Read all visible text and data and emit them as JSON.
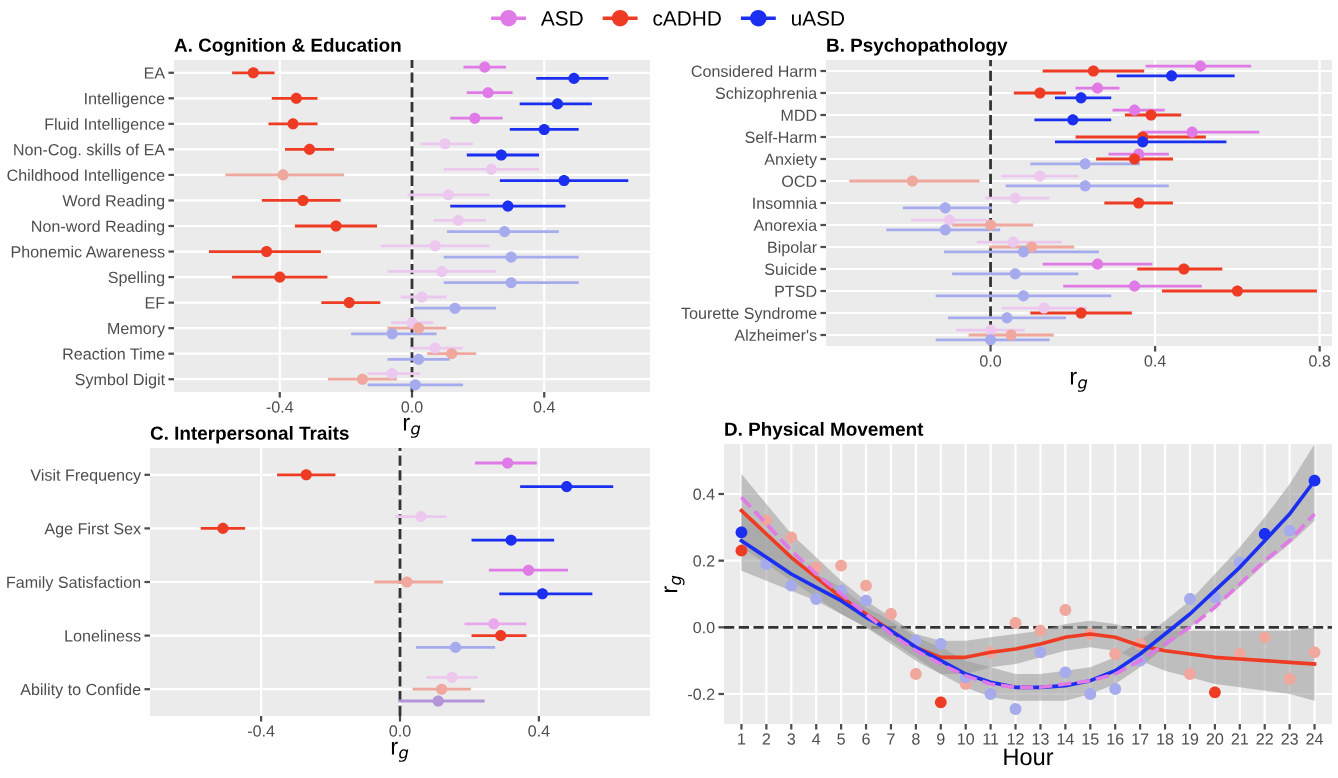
{
  "chart_data": [
    {
      "type": "scatter",
      "title": "A. Cognition & Education",
      "xlabel": "r$_{g}$",
      "orientation": "horizontal",
      "legend": "top",
      "grid": true,
      "categories": [
        "EA",
        "Intelligence",
        "Fluid Intelligence",
        "Non-Cog. skills of EA",
        "Childhood Intelligence",
        "Word Reading",
        "Non-word Reading",
        "Phonemic Awareness",
        "Spelling",
        "EF",
        "Memory",
        "Reaction Time",
        "Symbol Digit"
      ],
      "xlim": [
        -0.72,
        0.72
      ],
      "xticks": [
        {
          "value": -0.4,
          "label": "-0.4"
        },
        {
          "value": 0,
          "label": "0.0"
        },
        {
          "value": 0.4,
          "label": "0.4"
        }
      ],
      "ref_lines": [
        {
          "axis": "x",
          "value": 0,
          "line_style": "dashed",
          "color": "#333333"
        }
      ],
      "series": [
        {
          "name": "ASD",
          "color": "#df7ae6",
          "values": [
            0.22,
            0.23,
            0.19,
            0.1,
            0.24,
            0.11,
            0.14,
            0.07,
            0.09,
            0.03,
            0.0,
            0.07,
            -0.06
          ],
          "errors": [
            [
              0.16,
              0.28
            ],
            [
              0.17,
              0.3
            ],
            [
              0.12,
              0.27
            ],
            [
              0.03,
              0.18
            ],
            [
              0.1,
              0.38
            ],
            [
              -0.01,
              0.23
            ],
            [
              0.07,
              0.22
            ],
            [
              -0.09,
              0.23
            ],
            [
              -0.07,
              0.25
            ],
            [
              -0.03,
              0.1
            ],
            [
              -0.06,
              0.06
            ],
            [
              0.0,
              0.15
            ],
            [
              -0.13,
              0.02
            ]
          ],
          "colors": [
            "#df7ae6",
            "#df7ae6",
            "#df7ae6",
            "#ecc8ef",
            "#ecc8ef",
            "#ecc8ef",
            "#ecc8ef",
            "#ecc8ef",
            "#ecc8ef",
            "#ecc8ef",
            "#ecc8ef",
            "#ecc8ef",
            "#ecc8ef"
          ]
        },
        {
          "name": "cADHD",
          "color": "#ee3b24",
          "values": [
            -0.48,
            -0.35,
            -0.36,
            -0.31,
            -0.39,
            -0.33,
            -0.23,
            -0.44,
            -0.4,
            -0.19,
            0.02,
            0.12,
            -0.15
          ],
          "errors": [
            [
              -0.54,
              -0.42
            ],
            [
              -0.42,
              -0.29
            ],
            [
              -0.43,
              -0.29
            ],
            [
              -0.38,
              -0.24
            ],
            [
              -0.56,
              -0.21
            ],
            [
              -0.45,
              -0.22
            ],
            [
              -0.35,
              -0.11
            ],
            [
              -0.61,
              -0.28
            ],
            [
              -0.54,
              -0.26
            ],
            [
              -0.27,
              -0.1
            ],
            [
              -0.07,
              0.1
            ],
            [
              0.05,
              0.19
            ],
            [
              -0.25,
              -0.05
            ]
          ],
          "colors": [
            "#ee3b24",
            "#ee3b24",
            "#ee3b24",
            "#ee3b24",
            "#f0a79d",
            "#ee3b24",
            "#ee3b24",
            "#ee3b24",
            "#ee3b24",
            "#ee3b24",
            "#f0a79d",
            "#f0a79d",
            "#f0a79d"
          ]
        },
        {
          "name": "uASD",
          "color": "#1b2ff0",
          "values": [
            0.49,
            0.44,
            0.4,
            0.27,
            0.46,
            0.29,
            0.28,
            0.3,
            0.3,
            0.13,
            -0.06,
            0.02,
            0.01
          ],
          "errors": [
            [
              0.38,
              0.59
            ],
            [
              0.33,
              0.54
            ],
            [
              0.3,
              0.5
            ],
            [
              0.17,
              0.38
            ],
            [
              0.27,
              0.65
            ],
            [
              0.12,
              0.46
            ],
            [
              0.11,
              0.44
            ],
            [
              0.1,
              0.5
            ],
            [
              0.1,
              0.5
            ],
            [
              0.01,
              0.25
            ],
            [
              -0.18,
              0.07
            ],
            [
              -0.07,
              0.11
            ],
            [
              -0.13,
              0.15
            ]
          ],
          "colors": [
            "#1b2ff0",
            "#1b2ff0",
            "#1b2ff0",
            "#1b2ff0",
            "#1b2ff0",
            "#1b2ff0",
            "#a5abec",
            "#a5abec",
            "#a5abec",
            "#a5abec",
            "#a5abec",
            "#a5abec",
            "#a5abec"
          ]
        }
      ]
    },
    {
      "type": "scatter",
      "title": "B. Psychopathology",
      "xlabel": "r$_{g}$",
      "orientation": "horizontal",
      "grid": true,
      "categories": [
        "Considered Harm",
        "Schizophrenia",
        "MDD",
        "Self-Harm",
        "Anxiety",
        "OCD",
        "Insomnia",
        "Anorexia",
        "Bipolar",
        "Suicide",
        "PTSD",
        "Tourette Syndrome",
        "Alzheimer's"
      ],
      "xlim": [
        -0.4,
        0.83
      ],
      "xticks": [
        {
          "value": 0,
          "label": "0.0"
        },
        {
          "value": 0.4,
          "label": "0.4"
        },
        {
          "value": 0.8,
          "label": "0.8"
        }
      ],
      "ref_lines": [
        {
          "axis": "x",
          "value": 0,
          "line_style": "dashed",
          "color": "#333333"
        }
      ],
      "series": [
        {
          "color": "#df7ae6",
          "values": [
            0.51,
            0.26,
            0.35,
            0.49,
            0.36,
            0.12,
            0.06,
            -0.1,
            0.055,
            0.26,
            0.35,
            0.13,
            0.0
          ],
          "errors": [
            [
              0.38,
              0.63
            ],
            [
              0.21,
              0.31
            ],
            [
              0.3,
              0.42
            ],
            [
              0.37,
              0.65
            ],
            [
              0.29,
              0.43
            ],
            [
              0.03,
              0.21
            ],
            [
              -0.01,
              0.14
            ],
            [
              -0.19,
              -0.01
            ],
            [
              -0.03,
              0.17
            ],
            [
              0.13,
              0.39
            ],
            [
              0.18,
              0.51
            ],
            [
              0.03,
              0.23
            ],
            [
              -0.08,
              0.08
            ]
          ],
          "colors": [
            "#df7ae6",
            "#df7ae6",
            "#df7ae6",
            "#df7ae6",
            "#df7ae6",
            "#ecc8ef",
            "#ecc8ef",
            "#ecc8ef",
            "#ecc8ef",
            "#df7ae6",
            "#df7ae6",
            "#ecc8ef",
            "#ecc8ef"
          ]
        },
        {
          "color": "#ee3b24",
          "values": [
            0.25,
            0.12,
            0.39,
            0.37,
            0.35,
            -0.19,
            0.36,
            0.0,
            0.1,
            0.47,
            0.6,
            0.22,
            0.05
          ],
          "errors": [
            [
              0.13,
              0.37
            ],
            [
              0.06,
              0.18
            ],
            [
              0.33,
              0.46
            ],
            [
              0.21,
              0.52
            ],
            [
              0.26,
              0.44
            ],
            [
              -0.34,
              -0.03
            ],
            [
              0.28,
              0.44
            ],
            [
              -0.09,
              0.1
            ],
            [
              0.0,
              0.2
            ],
            [
              0.36,
              0.56
            ],
            [
              0.42,
              0.79
            ],
            [
              0.1,
              0.34
            ],
            [
              -0.05,
              0.15
            ]
          ],
          "colors": [
            "#ee3b24",
            "#ee3b24",
            "#ee3b24",
            "#ee3b24",
            "#ee3b24",
            "#f0a79d",
            "#ee3b24",
            "#f0a79d",
            "#f0a79d",
            "#ee3b24",
            "#ee3b24",
            "#ee3b24",
            "#f0a79d"
          ]
        },
        {
          "color": "#1b2ff0",
          "values": [
            0.44,
            0.22,
            0.2,
            0.37,
            0.23,
            0.23,
            -0.11,
            -0.11,
            0.08,
            0.06,
            0.08,
            0.04,
            0.0
          ],
          "errors": [
            [
              0.31,
              0.59
            ],
            [
              0.16,
              0.29
            ],
            [
              0.11,
              0.29
            ],
            [
              0.16,
              0.57
            ],
            [
              0.1,
              0.36
            ],
            [
              0.04,
              0.43
            ],
            [
              -0.21,
              0.0
            ],
            [
              -0.25,
              0.02
            ],
            [
              -0.11,
              0.26
            ],
            [
              -0.09,
              0.21
            ],
            [
              -0.13,
              0.29
            ],
            [
              -0.1,
              0.18
            ],
            [
              -0.13,
              0.14
            ]
          ],
          "colors": [
            "#1b2ff0",
            "#1b2ff0",
            "#1b2ff0",
            "#1b2ff0",
            "#a5abec",
            "#a5abec",
            "#a5abec",
            "#a5abec",
            "#a5abec",
            "#a5abec",
            "#a5abec",
            "#a5abec",
            "#a5abec"
          ]
        }
      ]
    },
    {
      "type": "scatter",
      "title": "C. Interpersonal Traits",
      "xlabel": "r$_{g}$",
      "orientation": "horizontal",
      "grid": true,
      "categories": [
        "Visit Frequency",
        "Age First Sex",
        "Family Satisfaction",
        "Loneliness",
        "Ability to Confide"
      ],
      "xlim": [
        -0.72,
        0.72
      ],
      "xticks": [
        {
          "value": -0.4,
          "label": "-0.4"
        },
        {
          "value": 0,
          "label": "0.0"
        },
        {
          "value": 0.4,
          "label": "0.4"
        }
      ],
      "ref_lines": [
        {
          "axis": "x",
          "value": 0,
          "line_style": "dashed",
          "color": "#333333"
        }
      ],
      "series": [
        {
          "color": "#df7ae6",
          "values": [
            0.31,
            0.06,
            0.37,
            0.27,
            0.15
          ],
          "errors": [
            [
              0.22,
              0.39
            ],
            [
              -0.01,
              0.13
            ],
            [
              0.26,
              0.48
            ],
            [
              0.19,
              0.36
            ],
            [
              0.08,
              0.22
            ]
          ],
          "colors": [
            "#df7ae6",
            "#ecc8ef",
            "#df7ae6",
            "#e9a8ee",
            "#ecc8ef"
          ]
        },
        {
          "color": "#ee3b24",
          "values": [
            -0.27,
            -0.51,
            0.02,
            0.29,
            0.12
          ],
          "errors": [
            [
              -0.35,
              -0.19
            ],
            [
              -0.57,
              -0.45
            ],
            [
              -0.07,
              0.12
            ],
            [
              0.21,
              0.36
            ],
            [
              0.04,
              0.2
            ]
          ],
          "colors": [
            "#ee3b24",
            "#ee3b24",
            "#f0a79d",
            "#ee3b24",
            "#f0a79d"
          ]
        },
        {
          "color": "#1b2ff0",
          "values": [
            0.48,
            0.32,
            0.41,
            0.16,
            0.11
          ],
          "errors": [
            [
              0.35,
              0.61
            ],
            [
              0.21,
              0.44
            ],
            [
              0.29,
              0.55
            ],
            [
              0.05,
              0.27
            ],
            [
              0.0,
              0.24
            ]
          ],
          "colors": [
            "#1b2ff0",
            "#1b2ff0",
            "#1b2ff0",
            "#a5abec",
            "#b394d6"
          ]
        }
      ]
    },
    {
      "type": "scatter",
      "title": "D. Physical Movement",
      "xlabel": "Hour",
      "ylabel": "r$_{g}$",
      "grid": true,
      "x": [
        1,
        2,
        3,
        4,
        5,
        6,
        7,
        8,
        9,
        10,
        11,
        12,
        13,
        14,
        15,
        16,
        17,
        18,
        19,
        20,
        21,
        22,
        23,
        24
      ],
      "xlim": [
        0.3,
        24.7
      ],
      "xticks": [
        1,
        2,
        3,
        4,
        5,
        6,
        7,
        8,
        9,
        10,
        11,
        12,
        13,
        14,
        15,
        16,
        17,
        18,
        19,
        20,
        21,
        22,
        23,
        24
      ],
      "ylim": [
        -0.29,
        0.55
      ],
      "yticks": [
        {
          "value": -0.2,
          "label": "-0.2"
        },
        {
          "value": 0,
          "label": "0.0"
        },
        {
          "value": 0.2,
          "label": "0.2"
        },
        {
          "value": 0.4,
          "label": "0.4"
        }
      ],
      "ref_lines": [
        {
          "axis": "y",
          "value": 0,
          "line_style": "dashed",
          "color": "#333333"
        }
      ],
      "series": [
        {
          "type": "line",
          "color": "#ee3b24",
          "line_style": "solid",
          "values": [
            0.35,
            0.28,
            0.21,
            0.15,
            0.09,
            0.04,
            -0.01,
            -0.06,
            -0.09,
            -0.09,
            -0.075,
            -0.065,
            -0.05,
            -0.03,
            -0.02,
            -0.03,
            -0.055,
            -0.07,
            -0.08,
            -0.09,
            -0.095,
            -0.1,
            -0.105,
            -0.11
          ],
          "lower": [
            0.24,
            0.19,
            0.14,
            0.09,
            0.04,
            0.0,
            -0.05,
            -0.1,
            -0.14,
            -0.14,
            -0.12,
            -0.11,
            -0.09,
            -0.07,
            -0.06,
            -0.07,
            -0.1,
            -0.13,
            -0.15,
            -0.17,
            -0.18,
            -0.19,
            -0.2,
            -0.22
          ],
          "upper": [
            0.46,
            0.37,
            0.28,
            0.21,
            0.14,
            0.08,
            0.03,
            -0.02,
            -0.04,
            -0.04,
            -0.03,
            -0.02,
            -0.01,
            0.01,
            0.02,
            0.01,
            -0.01,
            -0.01,
            -0.01,
            -0.01,
            -0.01,
            -0.01,
            -0.01,
            0.0
          ]
        },
        {
          "type": "line",
          "color": "#1b2ff0",
          "line_style": "solid",
          "values": [
            0.26,
            0.21,
            0.16,
            0.12,
            0.08,
            0.03,
            -0.01,
            -0.06,
            -0.1,
            -0.14,
            -0.165,
            -0.18,
            -0.18,
            -0.175,
            -0.16,
            -0.13,
            -0.08,
            -0.02,
            0.04,
            0.11,
            0.18,
            0.26,
            0.34,
            0.44
          ],
          "lower": [
            0.17,
            0.14,
            0.11,
            0.08,
            0.04,
            0.0,
            -0.04,
            -0.09,
            -0.14,
            -0.18,
            -0.21,
            -0.22,
            -0.22,
            -0.22,
            -0.2,
            -0.17,
            -0.12,
            -0.06,
            0.0,
            0.06,
            0.12,
            0.19,
            0.25,
            0.32
          ],
          "upper": [
            0.35,
            0.28,
            0.21,
            0.16,
            0.12,
            0.06,
            0.02,
            -0.03,
            -0.06,
            -0.1,
            -0.12,
            -0.14,
            -0.14,
            -0.13,
            -0.12,
            -0.09,
            -0.04,
            0.02,
            0.08,
            0.16,
            0.24,
            0.33,
            0.43,
            0.55
          ]
        },
        {
          "type": "line",
          "color": "#df7ae6",
          "line_style": "dashed",
          "values": [
            0.39,
            0.31,
            0.23,
            0.16,
            0.1,
            0.04,
            -0.02,
            -0.07,
            -0.11,
            -0.145,
            -0.17,
            -0.18,
            -0.18,
            -0.17,
            -0.16,
            -0.14,
            -0.1,
            -0.05,
            0.0,
            0.06,
            0.13,
            0.2,
            0.26,
            0.34
          ]
        },
        {
          "type": "scatter",
          "color": "#ee3b24",
          "values": [
            0.23,
            0.32,
            0.27,
            0.18,
            0.185,
            0.125,
            0.04,
            -0.14,
            -0.225,
            -0.17,
            -0.075,
            0.013,
            -0.01,
            0.052,
            -0.02,
            -0.08,
            -0.05,
            null,
            -0.14,
            -0.195,
            -0.08,
            -0.03,
            -0.155,
            -0.075
          ],
          "colors": [
            "#ee3b24",
            "#f0a79d",
            "#f0a79d",
            "#f0a79d",
            "#f0a79d",
            "#f0a79d",
            "#f0a79d",
            "#f0a79d",
            "#ee3b24",
            "#f0a79d",
            "#f0a79d",
            "#f0a79d",
            "#f0a79d",
            "#f0a79d",
            "#f0a79d",
            "#f0a79d",
            "#f0a79d",
            "#f0a79d",
            "#f0a79d",
            "#ee3b24",
            "#f0a79d",
            "#f0a79d",
            "#f0a79d",
            "#f0a79d"
          ]
        },
        {
          "type": "scatter",
          "color": "#1b2ff0",
          "values": [
            0.285,
            0.19,
            0.125,
            0.085,
            0.11,
            0.08,
            null,
            -0.04,
            -0.05,
            -0.15,
            -0.2,
            -0.245,
            -0.075,
            -0.135,
            -0.2,
            -0.185,
            -0.1,
            null,
            0.085,
            0.09,
            0.195,
            0.28,
            0.29,
            0.44
          ],
          "colors": [
            "#1b2ff0",
            "#a5abec",
            "#a5abec",
            "#a5abec",
            "#a5abec",
            "#a5abec",
            "#a5abec",
            "#a5abec",
            "#a5abec",
            "#a5abec",
            "#a5abec",
            "#a5abec",
            "#a5abec",
            "#a5abec",
            "#a5abec",
            "#a5abec",
            "#a5abec",
            "#a5abec",
            "#a5abec",
            "#a5abec",
            "#a5abec",
            "#1b2ff0",
            "#a5abec",
            "#1b2ff0"
          ]
        }
      ]
    }
  ]
}
